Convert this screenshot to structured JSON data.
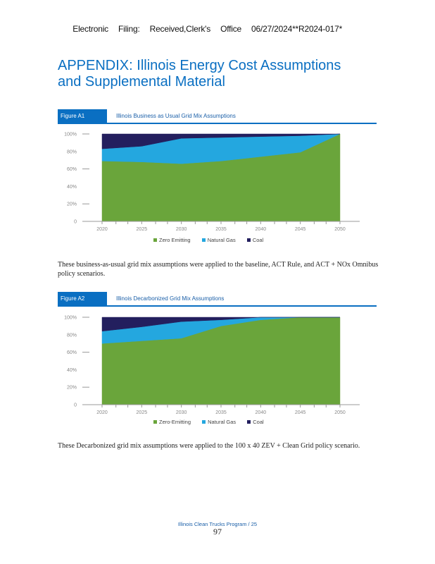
{
  "stamp": {
    "parts": [
      "Electronic",
      "Filing:",
      "Received,Clerk's",
      "Office",
      "06/27/2024**R2024-017*"
    ]
  },
  "title": {
    "line1": "APPENDIX: Illinois Energy Cost Assumptions",
    "line2": "and Supplemental Material"
  },
  "figures": [
    {
      "tab": "Figure A1",
      "title": "Illinois Business as Usual Grid Mix Assumptions",
      "caption": "These business-as-usual grid mix assumptions were applied to the baseline, ACT Rule, and ACT + NOx Omnibus policy scenarios."
    },
    {
      "tab": "Figure A2",
      "title": "Illinois Decarbonized Grid Mix Assumptions",
      "caption": "These Decarbonized grid mix assumptions were applied to the 100 x 40 ZEV + Clean Grid policy scenario."
    }
  ],
  "footer": {
    "label": "Illinois Clean Trucks Program / 25",
    "page": "97"
  },
  "colors": {
    "accent": "#0a6fc2",
    "zero_emitting": "#6aa53b",
    "natural_gas": "#24a7df",
    "coal": "#231f5e"
  },
  "chart_data": [
    {
      "type": "area",
      "stacked": true,
      "title": "Illinois Business as Usual Grid Mix Assumptions",
      "xlabel": "",
      "ylabel": "",
      "x": [
        2020,
        2025,
        2030,
        2035,
        2040,
        2045,
        2050
      ],
      "x_tick_labels": [
        "2020",
        "2025",
        "2030",
        "2035",
        "2040",
        "2045",
        "2050"
      ],
      "y_tick_labels": [
        "0",
        "20%",
        "40%",
        "60%",
        "80%",
        "100%"
      ],
      "ylim": [
        0,
        100
      ],
      "grid": false,
      "legend": "bottom-center",
      "series": [
        {
          "name": "Zero Emitting",
          "values": [
            69,
            68,
            66,
            69,
            74,
            79,
            100
          ]
        },
        {
          "name": "Natural Gas",
          "values": [
            14,
            18,
            29,
            27,
            23,
            19,
            0
          ]
        },
        {
          "name": "Coal",
          "values": [
            17,
            14,
            5,
            4,
            3,
            2,
            0
          ]
        }
      ]
    },
    {
      "type": "area",
      "stacked": true,
      "title": "Illinois Decarbonized Grid Mix Assumptions",
      "xlabel": "",
      "ylabel": "",
      "x": [
        2020,
        2025,
        2030,
        2035,
        2040,
        2045,
        2050
      ],
      "x_tick_labels": [
        "2020",
        "2025",
        "2030",
        "2035",
        "2040",
        "2045",
        "2050"
      ],
      "y_tick_labels": [
        "0",
        "20%",
        "40%",
        "60%",
        "80%",
        "100%"
      ],
      "ylim": [
        0,
        100
      ],
      "grid": false,
      "legend": "bottom-center",
      "series": [
        {
          "name": "Zero-Emitting",
          "values": [
            70,
            73,
            76,
            90,
            97,
            100,
            100
          ]
        },
        {
          "name": "Natural Gas",
          "values": [
            14,
            16,
            19,
            7,
            3,
            0,
            0
          ]
        },
        {
          "name": "Coal",
          "values": [
            16,
            11,
            5,
            3,
            0,
            0,
            0
          ]
        }
      ]
    }
  ]
}
